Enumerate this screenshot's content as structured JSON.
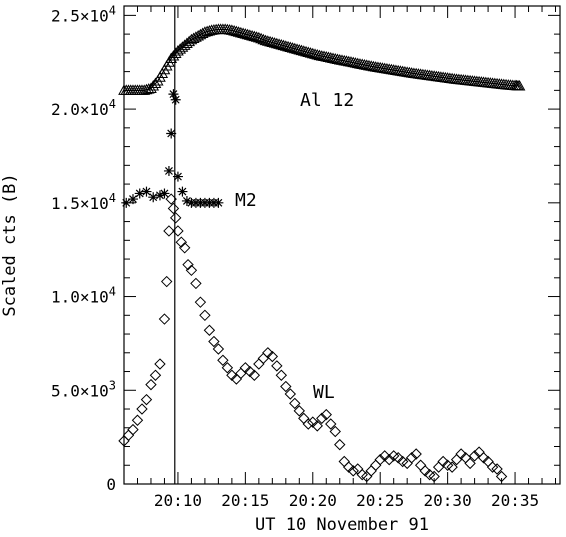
{
  "chart_data": {
    "type": "scatter",
    "title": "",
    "xlabel": "UT 10 November 91",
    "ylabel": "Scaled cts (B)",
    "xlim": [
      "20:06:00",
      "20:38:20"
    ],
    "ylim": [
      0,
      25500
    ],
    "x_ticks": [
      {
        "t": "20:10",
        "label": "20:10"
      },
      {
        "t": "20:15",
        "label": "20:15"
      },
      {
        "t": "20:20",
        "label": "20:20"
      },
      {
        "t": "20:25",
        "label": "20:25"
      },
      {
        "t": "20:30",
        "label": "20:30"
      },
      {
        "t": "20:35",
        "label": "20:35"
      }
    ],
    "y_ticks": [
      {
        "value": 0,
        "label": "0"
      },
      {
        "value": 5000,
        "label": "5.0×10",
        "exp": "3"
      },
      {
        "value": 10000,
        "label": "1.0×10",
        "exp": "4"
      },
      {
        "value": 15000,
        "label": "1.5×10",
        "exp": "4"
      },
      {
        "value": 20000,
        "label": "2.0×10",
        "exp": "4"
      },
      {
        "value": 25000,
        "label": "2.5×10",
        "exp": "4"
      }
    ],
    "vertical_line_x": "20:09:46",
    "grid": false,
    "series": [
      {
        "name": "Al 12",
        "marker": "triangle",
        "x": [
          "20:06:00",
          "20:06:30",
          "20:07:00",
          "20:07:30",
          "20:08:00",
          "20:08:30",
          "20:09:00",
          "20:09:30",
          "20:10:00",
          "20:10:30",
          "20:11:00",
          "20:11:30",
          "20:12:00",
          "20:12:30",
          "20:13:00",
          "20:13:30",
          "20:14:00",
          "20:14:30",
          "20:15:00",
          "20:15:30",
          "20:16:00",
          "20:16:30",
          "20:17:00",
          "20:17:30",
          "20:18:00",
          "20:18:30",
          "20:19:00",
          "20:19:30",
          "20:20:00",
          "20:20:30",
          "20:21:00",
          "20:21:30",
          "20:22:00",
          "20:22:30",
          "20:23:00",
          "20:23:30",
          "20:24:00",
          "20:24:30",
          "20:25:00",
          "20:25:30",
          "20:26:00",
          "20:26:30",
          "20:27:00",
          "20:27:30",
          "20:28:00",
          "20:28:30",
          "20:29:00",
          "20:29:30",
          "20:30:00",
          "20:30:30",
          "20:31:00",
          "20:31:30",
          "20:32:00",
          "20:32:30",
          "20:33:00",
          "20:33:30",
          "20:34:00",
          "20:34:30",
          "20:35:00",
          "20:35:20"
        ],
        "y": [
          21000,
          21000,
          21000,
          21000,
          21100,
          21500,
          22100,
          22700,
          23100,
          23400,
          23700,
          23900,
          24100,
          24200,
          24250,
          24250,
          24200,
          24100,
          24000,
          23900,
          23800,
          23650,
          23550,
          23450,
          23350,
          23250,
          23150,
          23050,
          22950,
          22850,
          22780,
          22700,
          22620,
          22550,
          22480,
          22400,
          22330,
          22260,
          22200,
          22140,
          22080,
          22020,
          21960,
          21900,
          21850,
          21800,
          21750,
          21700,
          21650,
          21600,
          21560,
          21520,
          21480,
          21440,
          21400,
          21360,
          21320,
          21280,
          21250,
          21230
        ]
      },
      {
        "name": "M2",
        "marker": "asterisk",
        "x": [
          "20:06:10",
          "20:06:40",
          "20:07:10",
          "20:07:40",
          "20:08:10",
          "20:08:40",
          "20:09:00",
          "20:09:20",
          "20:09:30",
          "20:09:40",
          "20:09:50",
          "20:10:00",
          "20:10:20",
          "20:10:40",
          "20:11:00",
          "20:11:20",
          "20:11:40",
          "20:12:00",
          "20:12:20",
          "20:12:40",
          "20:13:00"
        ],
        "y": [
          15000,
          15200,
          15500,
          15600,
          15300,
          15400,
          15500,
          16700,
          18700,
          20800,
          20500,
          16400,
          15600,
          15100,
          15000,
          15000,
          15000,
          15000,
          15000,
          15000,
          15000
        ]
      },
      {
        "name": "WL",
        "marker": "diamond",
        "x": [
          "20:06:00",
          "20:06:20",
          "20:06:40",
          "20:07:00",
          "20:07:20",
          "20:07:40",
          "20:08:00",
          "20:08:20",
          "20:08:40",
          "20:09:00",
          "20:09:10",
          "20:09:20",
          "20:09:30",
          "20:09:40",
          "20:09:50",
          "20:10:00",
          "20:10:15",
          "20:10:30",
          "20:10:45",
          "20:11:00",
          "20:11:20",
          "20:11:40",
          "20:12:00",
          "20:12:20",
          "20:12:40",
          "20:13:00",
          "20:13:20",
          "20:13:40",
          "20:14:00",
          "20:14:20",
          "20:14:40",
          "20:15:00",
          "20:15:20",
          "20:15:40",
          "20:16:00",
          "20:16:20",
          "20:16:40",
          "20:17:00",
          "20:17:20",
          "20:17:40",
          "20:18:00",
          "20:18:20",
          "20:18:40",
          "20:19:00",
          "20:19:20",
          "20:19:40",
          "20:20:00",
          "20:20:20",
          "20:20:40",
          "20:21:00",
          "20:21:20",
          "20:21:40",
          "20:22:00",
          "20:22:20",
          "20:22:40",
          "20:23:00",
          "20:23:20",
          "20:23:40",
          "20:24:00",
          "20:24:20",
          "20:24:40",
          "20:25:00",
          "20:25:20",
          "20:25:40",
          "20:26:00",
          "20:26:20",
          "20:26:40",
          "20:27:00",
          "20:27:20",
          "20:27:40",
          "20:28:00",
          "20:28:20",
          "20:28:40",
          "20:29:00",
          "20:29:20",
          "20:29:40",
          "20:30:00",
          "20:30:20",
          "20:30:40",
          "20:31:00",
          "20:31:20",
          "20:31:40",
          "20:32:00",
          "20:32:20",
          "20:32:40",
          "20:33:00",
          "20:33:20",
          "20:33:40",
          "20:34:00"
        ],
        "y": [
          2300,
          2600,
          2900,
          3400,
          4000,
          4500,
          5300,
          5800,
          6400,
          8800,
          10800,
          13500,
          15200,
          14700,
          14200,
          13500,
          12900,
          12600,
          11700,
          11400,
          10700,
          9700,
          9000,
          8200,
          7600,
          7200,
          6600,
          6200,
          5800,
          5600,
          5900,
          6200,
          6000,
          5800,
          6400,
          6700,
          7000,
          6800,
          6300,
          5800,
          5200,
          4800,
          4300,
          3900,
          3500,
          3200,
          3300,
          3100,
          3500,
          3700,
          3200,
          2800,
          2100,
          1200,
          900,
          700,
          800,
          500,
          400,
          700,
          1000,
          1300,
          1500,
          1300,
          1500,
          1400,
          1200,
          1100,
          1400,
          1600,
          1000,
          700,
          500,
          400,
          900,
          1200,
          1000,
          900,
          1300,
          1600,
          1400,
          1100,
          1500,
          1700,
          1400,
          1200,
          900,
          800,
          400
        ]
      }
    ],
    "annotations": [
      {
        "text": "Al 12",
        "series": "Al 12"
      },
      {
        "text": "M2",
        "series": "M2"
      },
      {
        "text": "WL",
        "series": "WL"
      }
    ]
  }
}
